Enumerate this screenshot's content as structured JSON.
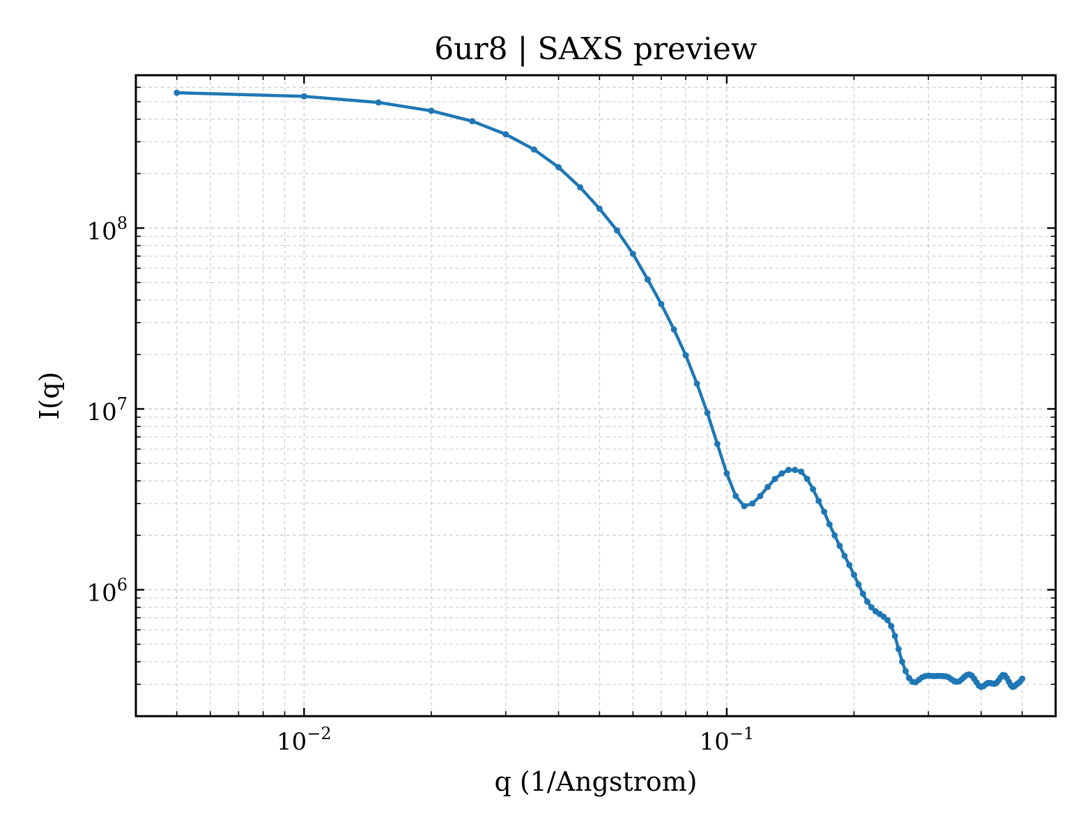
{
  "chart_data": {
    "type": "line",
    "title": "6ur8 | SAXS preview",
    "xlabel": "q (1/Angstrom)",
    "ylabel": "I(q)",
    "xscale": "log",
    "yscale": "log",
    "xlim": [
      0.004,
      0.6
    ],
    "ylim": [
      200000,
      700000000
    ],
    "grid": true,
    "legend": "none",
    "x_ticks": [
      {
        "base": "10",
        "exp": "−2",
        "value": 0.01
      },
      {
        "base": "10",
        "exp": "−1",
        "value": 0.1
      }
    ],
    "y_ticks": [
      {
        "base": "10",
        "exp": "6",
        "value": 1000000
      },
      {
        "base": "10",
        "exp": "7",
        "value": 10000000
      },
      {
        "base": "10",
        "exp": "8",
        "value": 100000000
      }
    ],
    "colors": {
      "line": "#1f77b4",
      "grid": "#cfcfcf",
      "axes": "#000000"
    },
    "series": [
      {
        "x": [
          0.005,
          0.01,
          0.015,
          0.02,
          0.025,
          0.03,
          0.035,
          0.04,
          0.045,
          0.05,
          0.055,
          0.06,
          0.065,
          0.07,
          0.075,
          0.08,
          0.085,
          0.09,
          0.095,
          0.1,
          0.105,
          0.11,
          0.115,
          0.12,
          0.125,
          0.13,
          0.135,
          0.14,
          0.145,
          0.15,
          0.155,
          0.16,
          0.165,
          0.17,
          0.175,
          0.18,
          0.185,
          0.19,
          0.195,
          0.2,
          0.205,
          0.21,
          0.215,
          0.22,
          0.225,
          0.23,
          0.235,
          0.24,
          0.245,
          0.25,
          0.255,
          0.26,
          0.265,
          0.27,
          0.275,
          0.28,
          0.285,
          0.29,
          0.295,
          0.3,
          0.305,
          0.31,
          0.315,
          0.32,
          0.325,
          0.33,
          0.335,
          0.34,
          0.345,
          0.35,
          0.355,
          0.36,
          0.365,
          0.37,
          0.375,
          0.38,
          0.385,
          0.39,
          0.395,
          0.4,
          0.405,
          0.41,
          0.415,
          0.42,
          0.425,
          0.43,
          0.435,
          0.44,
          0.445,
          0.45,
          0.455,
          0.46,
          0.465,
          0.47,
          0.475,
          0.48,
          0.485,
          0.49,
          0.495,
          0.5
        ],
        "y": [
          560000000,
          535000000,
          495000000,
          445000000,
          390000000,
          330000000,
          272000000,
          217000000,
          168000000,
          128000000,
          97000000,
          72000000,
          52000000,
          38000000,
          27500000,
          19800000,
          13800000,
          9500000,
          6400000,
          4400000,
          3300000,
          2900000,
          3000000,
          3300000,
          3700000,
          4100000,
          4400000,
          4600000,
          4600000,
          4500000,
          4100000,
          3600000,
          3100000,
          2700000,
          2300000,
          2000000,
          1750000,
          1540000,
          1370000,
          1210000,
          1070000,
          950000,
          860000,
          800000,
          760000,
          735000,
          710000,
          680000,
          630000,
          555000,
          470000,
          400000,
          355000,
          325000,
          310000,
          308000,
          318000,
          328000,
          333000,
          335000,
          334000,
          333000,
          334000,
          334000,
          333000,
          332000,
          328000,
          320000,
          313000,
          310000,
          312000,
          320000,
          330000,
          338000,
          340000,
          335000,
          322000,
          308000,
          295000,
          290000,
          293000,
          300000,
          305000,
          305000,
          303000,
          302000,
          306000,
          316000,
          328000,
          338000,
          336000,
          325000,
          310000,
          297000,
          290000,
          293000,
          300000,
          305000,
          312000,
          322000
        ]
      }
    ]
  }
}
